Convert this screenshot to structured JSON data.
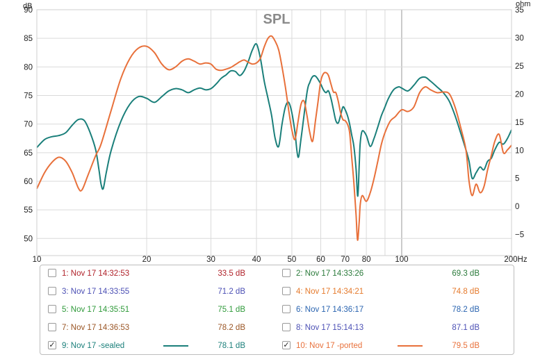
{
  "chart_data": {
    "type": "line",
    "title": "SPL",
    "xlabel_unit": "Hz",
    "left_unit": "dB",
    "right_unit": "ohm",
    "x_scale": "log",
    "xlim": [
      10,
      200
    ],
    "ylim": [
      47,
      90
    ],
    "y2lim": [
      -8.75,
      35
    ],
    "x_ticks": [
      "10",
      "20",
      "30",
      "40",
      "50",
      "60",
      "70",
      "80",
      "100",
      "200Hz"
    ],
    "x_tick_values": [
      10,
      20,
      30,
      40,
      50,
      60,
      70,
      80,
      100,
      200
    ],
    "x_gridlines": [
      10,
      20,
      30,
      40,
      50,
      60,
      70,
      80,
      90,
      100,
      200
    ],
    "y_ticks": [
      50,
      55,
      60,
      65,
      70,
      75,
      80,
      85,
      90
    ],
    "y2_ticks": [
      -5,
      0,
      5,
      10,
      15,
      20,
      25,
      30,
      35
    ],
    "y2_tick_labels": [
      "−5",
      "0",
      "5",
      "10",
      "15",
      "20",
      "25",
      "30",
      "35"
    ],
    "grid": true,
    "series": [
      {
        "name": "9: Nov 17 -sealed",
        "color": "#1a7f7a",
        "points": [
          [
            10,
            65.9
          ],
          [
            10.5,
            67.3
          ],
          [
            11,
            67.8
          ],
          [
            11.5,
            68.0
          ],
          [
            12,
            68.5
          ],
          [
            12.5,
            69.8
          ],
          [
            13,
            70.8
          ],
          [
            13.5,
            70.6
          ],
          [
            14,
            68.5
          ],
          [
            14.5,
            65.5
          ],
          [
            14.8,
            62
          ],
          [
            15.0,
            59.5
          ],
          [
            15.2,
            58.7
          ],
          [
            15.5,
            61.5
          ],
          [
            16,
            65.5
          ],
          [
            17,
            70.5
          ],
          [
            18,
            73.5
          ],
          [
            19,
            74.8
          ],
          [
            20,
            74.5
          ],
          [
            21,
            73.8
          ],
          [
            22,
            74.8
          ],
          [
            23,
            75.8
          ],
          [
            24,
            76.2
          ],
          [
            25,
            76.0
          ],
          [
            26,
            75.5
          ],
          [
            27,
            76.0
          ],
          [
            28,
            76.3
          ],
          [
            29,
            76.0
          ],
          [
            30,
            76.2
          ],
          [
            31,
            77.0
          ],
          [
            32,
            78.0
          ],
          [
            33,
            78.6
          ],
          [
            34,
            79.3
          ],
          [
            35,
            79.2
          ],
          [
            36,
            78.5
          ],
          [
            37,
            79.3
          ],
          [
            38,
            81.0
          ],
          [
            39,
            83.0
          ],
          [
            40,
            84.0
          ],
          [
            41,
            81.5
          ],
          [
            42,
            77.5
          ],
          [
            43,
            74.5
          ],
          [
            44,
            71.5
          ],
          [
            45,
            67.5
          ],
          [
            46,
            66.1
          ],
          [
            47,
            70
          ],
          [
            48,
            73.0
          ],
          [
            49,
            73.8
          ],
          [
            50,
            72.0
          ],
          [
            51,
            68.5
          ],
          [
            52,
            64.2
          ],
          [
            53,
            67.5
          ],
          [
            55,
            75.5
          ],
          [
            56,
            77.3
          ],
          [
            57,
            78.3
          ],
          [
            58,
            78.4
          ],
          [
            59,
            77.8
          ],
          [
            60,
            77.0
          ],
          [
            61,
            76.0
          ],
          [
            62,
            75.5
          ],
          [
            63,
            75.8
          ],
          [
            64,
            74.5
          ],
          [
            65,
            72.5
          ],
          [
            66,
            70.6
          ],
          [
            67,
            70.2
          ],
          [
            68,
            71.5
          ],
          [
            69,
            73.0
          ],
          [
            70,
            72.5
          ],
          [
            71,
            71.5
          ],
          [
            72,
            70.0
          ],
          [
            73,
            68.0
          ],
          [
            74,
            66.0
          ],
          [
            75,
            62.0
          ],
          [
            75.8,
            57.4
          ],
          [
            76.5,
            63.0
          ],
          [
            77,
            66.8
          ],
          [
            78,
            68.8
          ],
          [
            80,
            68.0
          ],
          [
            82,
            66.1
          ],
          [
            84,
            67.5
          ],
          [
            86,
            69.5
          ],
          [
            88,
            71.5
          ],
          [
            90,
            73.0
          ],
          [
            92,
            74.5
          ],
          [
            95,
            76.0
          ],
          [
            98,
            76.5
          ],
          [
            100,
            76.3
          ],
          [
            104,
            75.8
          ],
          [
            108,
            76.8
          ],
          [
            112,
            78.0
          ],
          [
            116,
            78.2
          ],
          [
            120,
            77.5
          ],
          [
            125,
            76.5
          ],
          [
            130,
            75.5
          ],
          [
            135,
            74.0
          ],
          [
            140,
            71.5
          ],
          [
            145,
            68.5
          ],
          [
            150,
            65.5
          ],
          [
            153,
            63.5
          ],
          [
            156,
            60.5
          ],
          [
            160,
            61.5
          ],
          [
            164,
            62.5
          ],
          [
            168,
            62.0
          ],
          [
            172,
            63.5
          ],
          [
            176,
            64.0
          ],
          [
            180,
            65.5
          ],
          [
            185,
            66.8
          ],
          [
            190,
            66.5
          ],
          [
            195,
            67.5
          ],
          [
            200,
            69.0
          ]
        ]
      },
      {
        "name": "10: Nov 17 -ported",
        "color": "#e8703a",
        "points": [
          [
            10,
            58.7
          ],
          [
            10.5,
            61.5
          ],
          [
            11,
            63.3
          ],
          [
            11.5,
            64.2
          ],
          [
            12,
            63.5
          ],
          [
            12.5,
            61.5
          ],
          [
            13,
            58.8
          ],
          [
            13.3,
            58.5
          ],
          [
            13.8,
            61.0
          ],
          [
            14.5,
            64.5
          ],
          [
            15,
            66.5
          ],
          [
            16,
            72.5
          ],
          [
            17,
            78.0
          ],
          [
            18,
            81.5
          ],
          [
            19,
            83.3
          ],
          [
            20,
            83.6
          ],
          [
            21,
            82.5
          ],
          [
            22,
            80.5
          ],
          [
            23,
            79.5
          ],
          [
            24,
            80.0
          ],
          [
            25,
            81.0
          ],
          [
            26,
            81.4
          ],
          [
            27,
            81.0
          ],
          [
            28,
            80.5
          ],
          [
            29,
            80.7
          ],
          [
            30,
            80.5
          ],
          [
            31,
            79.6
          ],
          [
            32,
            79.4
          ],
          [
            33,
            79.6
          ],
          [
            34,
            79.9
          ],
          [
            35,
            80.4
          ],
          [
            36,
            80.9
          ],
          [
            37,
            81.2
          ],
          [
            38,
            80.8
          ],
          [
            39,
            80.5
          ],
          [
            40,
            80.7
          ],
          [
            41,
            81.5
          ],
          [
            42,
            83.5
          ],
          [
            43,
            85.0
          ],
          [
            44,
            85.4
          ],
          [
            45,
            84.5
          ],
          [
            46,
            83.0
          ],
          [
            47,
            80.0
          ],
          [
            48,
            76.5
          ],
          [
            49,
            72.5
          ],
          [
            50,
            69.0
          ],
          [
            51,
            67.3
          ],
          [
            52,
            70.5
          ],
          [
            53,
            73.5
          ],
          [
            54,
            74.0
          ],
          [
            55,
            71.5
          ],
          [
            56,
            68.5
          ],
          [
            57,
            67.0
          ],
          [
            58,
            70.5
          ],
          [
            59,
            74.0
          ],
          [
            60,
            77.5
          ],
          [
            61,
            78.8
          ],
          [
            62,
            79.0
          ],
          [
            63,
            78.5
          ],
          [
            64,
            77.0
          ],
          [
            65,
            75.6
          ],
          [
            66,
            75.5
          ],
          [
            67,
            74.0
          ],
          [
            68,
            72.0
          ],
          [
            69,
            70.8
          ],
          [
            70,
            70.6
          ],
          [
            71,
            70.0
          ],
          [
            72,
            68.5
          ],
          [
            73,
            64.0
          ],
          [
            74,
            59.5
          ],
          [
            75,
            54.0
          ],
          [
            75.7,
            49.7
          ],
          [
            76.5,
            53.0
          ],
          [
            77,
            56.0
          ],
          [
            78,
            57.5
          ],
          [
            80,
            56.5
          ],
          [
            82,
            58.0
          ],
          [
            84,
            60.5
          ],
          [
            86,
            63.5
          ],
          [
            88,
            66.5
          ],
          [
            90,
            68.5
          ],
          [
            93,
            70.5
          ],
          [
            96,
            71.3
          ],
          [
            100,
            72.5
          ],
          [
            104,
            72.2
          ],
          [
            108,
            73.0
          ],
          [
            112,
            75.5
          ],
          [
            116,
            76.5
          ],
          [
            120,
            76.0
          ],
          [
            125,
            75.5
          ],
          [
            130,
            75.6
          ],
          [
            135,
            75.3
          ],
          [
            140,
            73.0
          ],
          [
            145,
            69.5
          ],
          [
            150,
            65.5
          ],
          [
            153,
            60.0
          ],
          [
            156,
            57.5
          ],
          [
            160,
            59.5
          ],
          [
            164,
            58.0
          ],
          [
            168,
            59.0
          ],
          [
            172,
            62.0
          ],
          [
            176,
            64.5
          ],
          [
            180,
            67.0
          ],
          [
            185,
            68.2
          ],
          [
            190,
            65.0
          ],
          [
            195,
            65.5
          ],
          [
            200,
            66.3
          ]
        ]
      }
    ]
  },
  "legend": [
    {
      "label": "1: Nov 17 14:32:53",
      "value": "33.5 dB",
      "checked": false,
      "color": "#b0222a",
      "value_color": "#b0222a",
      "show_swatch": false
    },
    {
      "label": "2: Nov 17 14:33:26",
      "value": "69.3 dB",
      "checked": false,
      "color": "#2a7a3a",
      "value_color": "#2a7a3a",
      "show_swatch": false
    },
    {
      "label": "3: Nov 17 14:33:55",
      "value": "71.2 dB",
      "checked": false,
      "color": "#4b4fb4",
      "value_color": "#4b4fb4",
      "show_swatch": false
    },
    {
      "label": "4: Nov 17 14:34:21",
      "value": "74.8 dB",
      "checked": false,
      "color": "#e57a2c",
      "value_color": "#e57a2c",
      "show_swatch": false
    },
    {
      "label": "5: Nov 17 14:35:51",
      "value": "75.1 dB",
      "checked": false,
      "color": "#2f9a3a",
      "value_color": "#2f9a3a",
      "show_swatch": false
    },
    {
      "label": "6: Nov 17 14:36:17",
      "value": "78.2 dB",
      "checked": false,
      "color": "#2a64b0",
      "value_color": "#2a64b0",
      "show_swatch": false
    },
    {
      "label": "7: Nov 17 14:36:53",
      "value": "78.2 dB",
      "checked": false,
      "color": "#9a5524",
      "value_color": "#9a5524",
      "show_swatch": false
    },
    {
      "label": "8: Nov 17 15:14:13",
      "value": "87.1 dB",
      "checked": false,
      "color": "#4b4fb4",
      "value_color": "#4b4fb4",
      "show_swatch": false
    },
    {
      "label": "9: Nov 17 -sealed",
      "value": "78.1 dB",
      "checked": true,
      "color": "#1a7f7a",
      "value_color": "#1a7f7a",
      "show_swatch": true
    },
    {
      "label": "10: Nov 17 -ported",
      "value": "79.5 dB",
      "checked": true,
      "color": "#e8703a",
      "value_color": "#e8703a",
      "show_swatch": true
    }
  ]
}
